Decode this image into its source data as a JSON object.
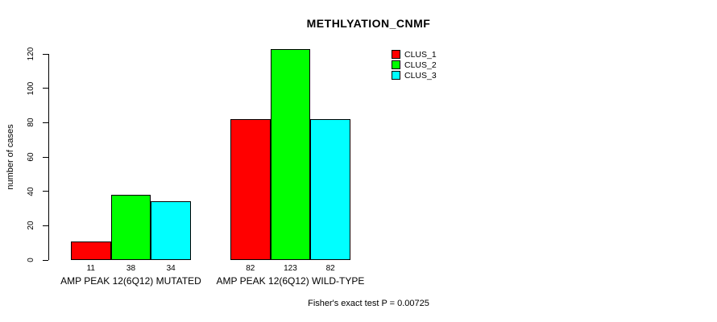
{
  "chart_data": {
    "type": "bar",
    "title": "METHLYATION_CNMF",
    "ylabel": "number of cases",
    "xlabel": "",
    "categories": [
      "AMP PEAK 12(6Q12) MUTATED",
      "AMP PEAK 12(6Q12) WILD-TYPE"
    ],
    "series": [
      {
        "name": "CLUS_1",
        "color": "#ff0000",
        "values": [
          11,
          82
        ]
      },
      {
        "name": "CLUS_2",
        "color": "#00ff00",
        "values": [
          38,
          123
        ]
      },
      {
        "name": "CLUS_3",
        "color": "#00ffff",
        "values": [
          34,
          82
        ]
      }
    ],
    "bar_value_labels": [
      [
        11,
        38,
        34
      ],
      [
        82,
        123,
        82
      ]
    ],
    "ylim": [
      0,
      120
    ],
    "yticks": [
      0,
      20,
      40,
      60,
      80,
      100,
      120
    ],
    "grid": false,
    "legend_position": "top-right-inside",
    "annotation": "Fisher's exact test P = 0.00725"
  }
}
